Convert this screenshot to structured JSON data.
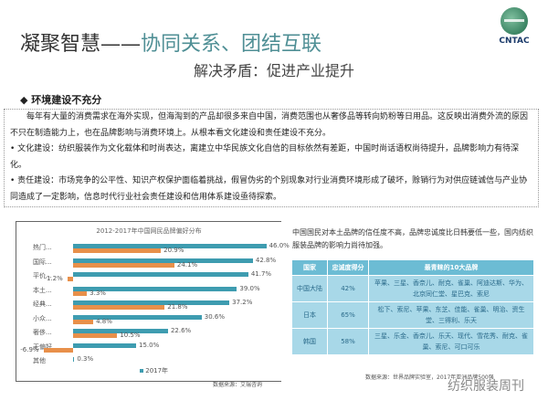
{
  "header": {
    "title_a": "凝聚智慧——",
    "title_b": "协同关系、团结互联",
    "logo_text": "CNTAC",
    "subtitle": "解决矛盾：促进产业提升"
  },
  "section": {
    "heading": "◆ 环境建设不充分",
    "paragraphs": [
      "　　每年有大量的消费需求在海外实现，但海淘到的产品却很多来自中国，消费范围也从奢侈品等转向奶粉等日用品。这反映出消费外流的原因不只在制造能力上，也在品牌影响与消费环境上。从根本看文化建设和责任建设不充分。",
      "• 文化建设：纺织服装作为文化载体和时尚表达，离建立中华民族文化自信的目标依然有差距，中国时尚话语权尚待提升，品牌影响力有待深化。",
      "• 责任建设：市场竞争的公平性、知识产权保护面临着挑战，假冒伪劣的个别现象对行业消费环境形成了破坏，赊销行为对供应链诚信与产业协同造成了一定影响，信息时代行业社会责任建设和信用体系建设亟待探索。"
    ]
  },
  "chart_data": {
    "type": "bar",
    "title": "2012-2017年中国网民品牌偏好分布",
    "categories": [
      "热门...",
      "国际...",
      "平价...",
      "本土...",
      "经典...",
      "小众...",
      "奢侈...",
      "无偏好",
      "其他"
    ],
    "series": [
      {
        "name": "2017年",
        "color": "#3e9cb0",
        "values": [
          46.0,
          42.8,
          41.7,
          39.0,
          37.2,
          30.6,
          22.6,
          15.0,
          0.3
        ]
      },
      {
        "name": "",
        "color": "#e8904a",
        "values": [
          20.9,
          24.1,
          -1.2,
          3.3,
          21.8,
          4.8,
          10.5,
          -6.9,
          null
        ]
      }
    ],
    "value_labels": [
      [
        "46.0%",
        "42.8%",
        "41.7%",
        "39.0%",
        "37.2%",
        "30.6%",
        "22.6%",
        "15.0%",
        "0.3%"
      ],
      [
        "20.9%",
        "24.1%",
        "-1.2%",
        "3.3%",
        "21.8%",
        "4.8%",
        "10.5%",
        "-6.9%",
        ""
      ]
    ],
    "legend": "2017年",
    "source": "数据来源：艾瑞咨询"
  },
  "right": {
    "intro": "中国国民对本土品牌的信任度不高，品牌忠诚度比日韩要低一些，国内纺织服装品牌的影响力尚待加强。",
    "table": {
      "headers": [
        "国家",
        "忠诚度得分",
        "最青睐的10大品牌"
      ],
      "rows": [
        [
          "中国大陆",
          "42%",
          "苹果、三星、香奈儿、耐克、雀巢、阿迪达斯、华为、北京同仁堂、星巴克、索尼"
        ],
        [
          "日本",
          "65%",
          "松下、索尼、苹果、东芝、佳能、雀巢、明治、资生堂、三得利、乐天"
        ],
        [
          "韩国",
          "58%",
          "三星、乐金、香奈儿、乐天、现代、雪花秀、耐克、雀巢、索尼、可口可乐"
        ]
      ]
    },
    "source": "数据来源：世界品牌实验室，2017年亚洲品牌500强"
  },
  "watermark": "纺织服装周刊"
}
